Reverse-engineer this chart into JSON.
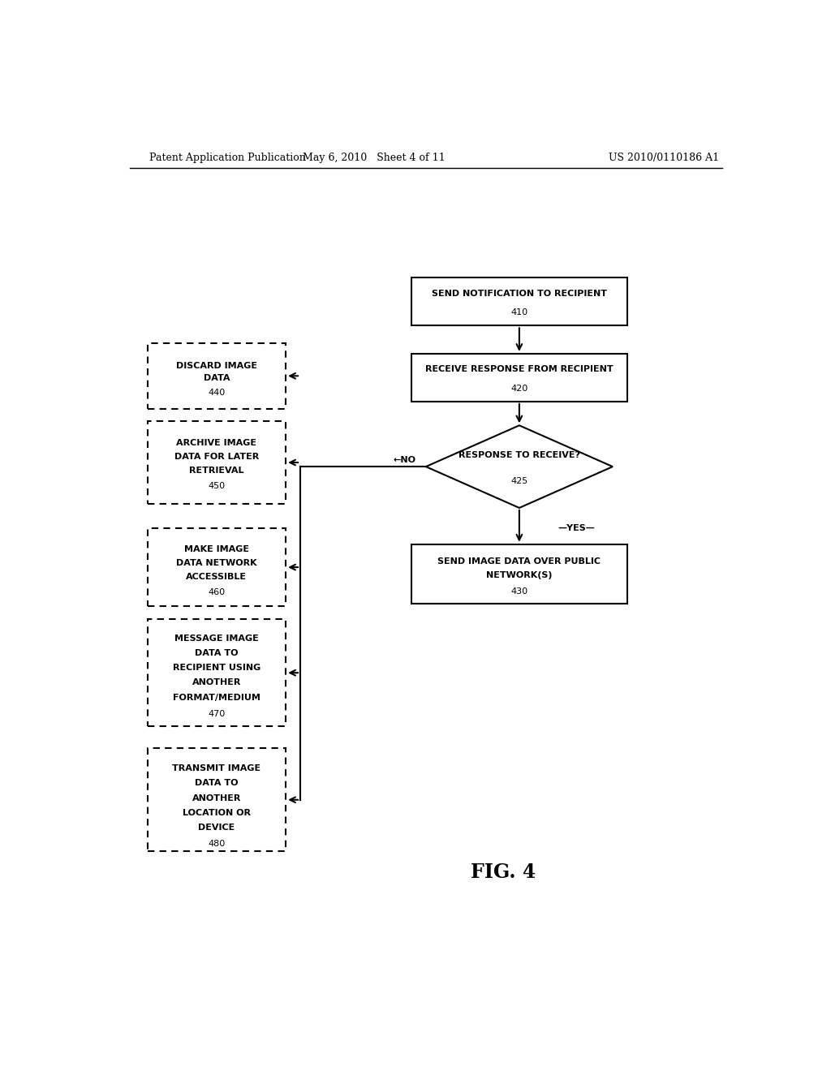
{
  "bg_color": "#ffffff",
  "header_left": "Patent Application Publication",
  "header_mid": "May 6, 2010   Sheet 4 of 11",
  "header_right": "US 2010/0110186 A1",
  "fig_label": "FIG. 4"
}
